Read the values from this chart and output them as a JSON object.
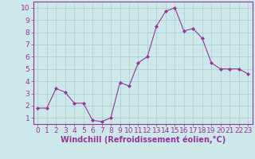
{
  "x": [
    0,
    1,
    2,
    3,
    4,
    5,
    6,
    7,
    8,
    9,
    10,
    11,
    12,
    13,
    14,
    15,
    16,
    17,
    18,
    19,
    20,
    21,
    22,
    23
  ],
  "y": [
    1.8,
    1.8,
    3.4,
    3.1,
    2.2,
    2.2,
    0.8,
    0.7,
    1.0,
    3.9,
    3.6,
    5.5,
    6.0,
    8.5,
    9.7,
    10.0,
    8.1,
    8.3,
    7.5,
    5.5,
    5.0,
    5.0,
    5.0,
    4.6
  ],
  "line_color": "#993399",
  "marker": "D",
  "marker_size": 2,
  "bg_color": "#cce8e8",
  "grid_color": "#aacccc",
  "xlabel": "Windchill (Refroidissement éolien,°C)",
  "ylim_min": 0.5,
  "ylim_max": 10.5,
  "xlim_min": -0.5,
  "xlim_max": 23.5,
  "yticks": [
    1,
    2,
    3,
    4,
    5,
    6,
    7,
    8,
    9,
    10
  ],
  "xticks": [
    0,
    1,
    2,
    3,
    4,
    5,
    6,
    7,
    8,
    9,
    10,
    11,
    12,
    13,
    14,
    15,
    16,
    17,
    18,
    19,
    20,
    21,
    22,
    23
  ],
  "tick_color": "#993399",
  "label_color": "#993399",
  "spine_color": "#993399",
  "xlabel_fontsize": 7,
  "tick_fontsize": 6.5
}
